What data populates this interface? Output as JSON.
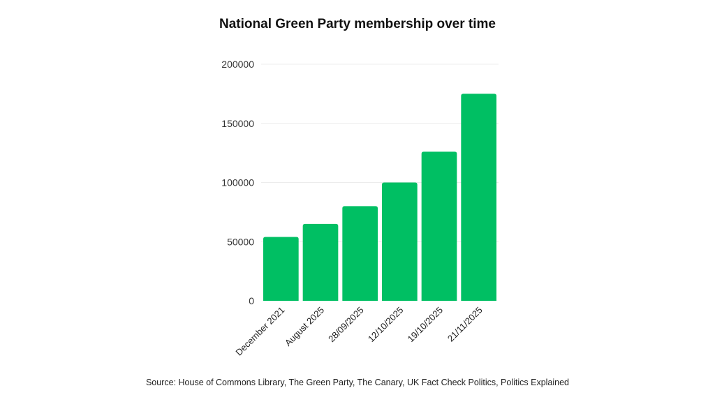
{
  "chart_data": {
    "type": "bar",
    "title": "National Green Party membership over time",
    "categories": [
      "December 2021",
      "August 2025",
      "28/09/2025",
      "12/10/2025",
      "19/10/2025",
      "21/11/2025"
    ],
    "values": [
      54000,
      65000,
      80000,
      100000,
      126000,
      175000
    ],
    "xlabel": "",
    "ylabel": "",
    "ylim": [
      0,
      200000
    ],
    "yticks": [
      "0",
      "50000",
      "100000",
      "150000",
      "200000"
    ],
    "grid": true,
    "bar_color": "#00BF63",
    "source": "Source: House of Commons Library, The Green Party, The Canary, UK Fact Check Politics, Politics Explained"
  }
}
